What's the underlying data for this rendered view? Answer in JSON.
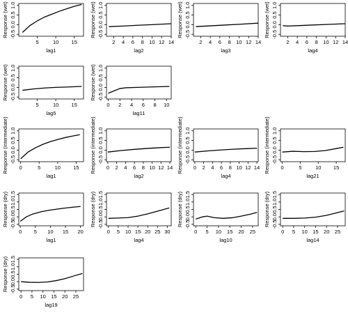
{
  "chart_data": [
    {
      "type": "line",
      "xlabel": "lag1",
      "ylabel": "Response (wet)",
      "x": [
        1,
        3,
        5,
        7,
        9,
        11,
        13,
        15,
        17
      ],
      "values": [
        -0.4,
        -0.05,
        0.2,
        0.4,
        0.55,
        0.7,
        0.83,
        0.95,
        1.05
      ],
      "xlim": [
        0,
        17.5
      ],
      "ylim": [
        -0.6,
        1.1
      ],
      "xticks": [
        5,
        10,
        15
      ],
      "yticks": [
        -0.5,
        {
          "value": 0,
          "label": "0.0"
        },
        0.5,
        {
          "value": 1,
          "label": "1.0"
        }
      ],
      "color": "#000000"
    },
    {
      "type": "line",
      "xlabel": "lag2",
      "ylabel": "Response (wet)",
      "x": [
        1,
        4,
        7,
        10,
        14
      ],
      "values": [
        -0.1,
        -0.07,
        -0.03,
        0,
        0.05
      ],
      "xlim": [
        0.5,
        14
      ],
      "ylim": [
        -0.6,
        1.1
      ],
      "xticks": [
        2,
        4,
        6,
        8,
        10,
        12,
        14
      ],
      "yticks": [
        -0.5,
        {
          "value": 0,
          "label": "0.0"
        },
        0.5,
        {
          "value": 1,
          "label": "1.0"
        }
      ],
      "color": "#000000"
    },
    {
      "type": "line",
      "xlabel": "lag3",
      "ylabel": "Response (wet)",
      "x": [
        1,
        4,
        7,
        10,
        14
      ],
      "values": [
        -0.1,
        -0.06,
        -0.02,
        0.02,
        0.08
      ],
      "xlim": [
        0.5,
        14
      ],
      "ylim": [
        -0.6,
        1.1
      ],
      "xticks": [
        2,
        4,
        6,
        8,
        10,
        12,
        14
      ],
      "yticks": [
        -0.5,
        {
          "value": 0,
          "label": "0.0"
        },
        0.5,
        {
          "value": 1,
          "label": "1.0"
        }
      ],
      "color": "#000000"
    },
    {
      "type": "line",
      "xlabel": "lag4",
      "ylabel": "Response (wet)",
      "x": [
        1,
        2,
        4,
        7,
        10,
        14
      ],
      "values": [
        -0.05,
        -0.07,
        -0.05,
        -0.02,
        0.01,
        0.05
      ],
      "xlim": [
        0.5,
        14
      ],
      "ylim": [
        -0.6,
        1.1
      ],
      "xticks": [
        2,
        4,
        6,
        8,
        10,
        12,
        14
      ],
      "yticks": [
        -0.5,
        {
          "value": 0,
          "label": "0.0"
        },
        0.5,
        {
          "value": 1,
          "label": "1.0"
        }
      ],
      "color": "#000000"
    },
    {
      "type": "line",
      "xlabel": "lag5",
      "ylabel": "Response (wet)",
      "x": [
        1,
        4,
        7,
        10,
        13,
        17
      ],
      "values": [
        -0.15,
        -0.08,
        -0.03,
        0,
        0.02,
        0.05
      ],
      "xlim": [
        0,
        17.5
      ],
      "ylim": [
        -0.6,
        1.1
      ],
      "xticks": [
        5,
        10,
        15
      ],
      "yticks": [
        -0.5,
        {
          "value": 0,
          "label": "0.0"
        },
        0.5,
        {
          "value": 1,
          "label": "1.0"
        }
      ],
      "color": "#000000"
    },
    {
      "type": "line",
      "xlabel": "lag11",
      "ylabel": "Response (wet)",
      "x": [
        0,
        1,
        2,
        3,
        5,
        7,
        10.5
      ],
      "values": [
        -0.3,
        -0.18,
        -0.06,
        -0.02,
        0,
        0.02,
        0.05
      ],
      "xlim": [
        -0.3,
        10.8
      ],
      "ylim": [
        -0.6,
        1.1
      ],
      "xticks": [
        0,
        2,
        4,
        6,
        8,
        10
      ],
      "yticks": [
        -0.5,
        {
          "value": 0,
          "label": "0.0"
        },
        0.5,
        {
          "value": 1,
          "label": "1.0"
        }
      ],
      "color": "#000000"
    },
    {
      "type": "line",
      "xlabel": "lag1",
      "ylabel": "Response (intermediate)",
      "x": [
        0,
        2,
        4,
        6,
        8,
        10,
        12,
        14,
        16
      ],
      "values": [
        -0.45,
        -0.1,
        0.12,
        0.3,
        0.44,
        0.55,
        0.65,
        0.73,
        0.8
      ],
      "xlim": [
        -0.5,
        17
      ],
      "ylim": [
        -0.6,
        1.1
      ],
      "xticks": [
        0,
        5,
        10,
        15
      ],
      "yticks": [
        -0.5,
        {
          "value": 0,
          "label": "0.0"
        },
        0.5,
        {
          "value": 1,
          "label": "1.0"
        }
      ],
      "color": "#000000"
    },
    {
      "type": "line",
      "xlabel": "lag2",
      "ylabel": "Response (intermediate)",
      "x": [
        0,
        3,
        6,
        9,
        12,
        14
      ],
      "values": [
        -0.1,
        -0.02,
        0.04,
        0.09,
        0.13,
        0.15
      ],
      "xlim": [
        -0.3,
        14.3
      ],
      "ylim": [
        -0.6,
        1.1
      ],
      "xticks": [
        0,
        2,
        4,
        6,
        8,
        10,
        12,
        14
      ],
      "yticks": [
        -0.5,
        {
          "value": 0,
          "label": "0.0"
        },
        0.5,
        {
          "value": 1,
          "label": "1.0"
        }
      ],
      "color": "#000000"
    },
    {
      "type": "line",
      "xlabel": "lag4",
      "ylabel": "Response (intermediate)",
      "x": [
        0,
        3,
        6,
        9,
        12,
        14
      ],
      "values": [
        -0.1,
        -0.04,
        0.01,
        0.05,
        0.08,
        0.1
      ],
      "xlim": [
        -0.3,
        14.3
      ],
      "ylim": [
        -0.6,
        1.1
      ],
      "xticks": [
        0,
        2,
        4,
        6,
        8,
        10,
        12,
        14
      ],
      "yticks": [
        -0.5,
        {
          "value": 0,
          "label": "0.0"
        },
        0.5,
        {
          "value": 1,
          "label": "1.0"
        }
      ],
      "color": "#000000"
    },
    {
      "type": "line",
      "xlabel": "lag21",
      "ylabel": "Response (intermediate)",
      "x": [
        0,
        3,
        6,
        9,
        12,
        15,
        17
      ],
      "values": [
        -0.1,
        -0.06,
        -0.08,
        -0.07,
        -0.02,
        0.08,
        0.15
      ],
      "xlim": [
        -0.5,
        17.5
      ],
      "ylim": [
        -0.6,
        1.1
      ],
      "xticks": [
        0,
        5,
        10,
        15
      ],
      "yticks": [
        -0.5,
        {
          "value": 0,
          "label": "0.0"
        },
        0.5,
        {
          "value": 1,
          "label": "1.0"
        }
      ],
      "color": "#000000"
    },
    {
      "type": "line",
      "xlabel": "lag1",
      "ylabel": "Response (dry)",
      "x": [
        0,
        2,
        4,
        7,
        10,
        14,
        17,
        20
      ],
      "values": [
        -0.3,
        0,
        0.18,
        0.35,
        0.46,
        0.57,
        0.64,
        0.7
      ],
      "xlim": [
        -0.5,
        21
      ],
      "ylim": [
        -0.6,
        1.6
      ],
      "xticks": [
        0,
        5,
        10,
        15,
        20
      ],
      "yticks": [
        -0.5,
        {
          "value": 0,
          "label": "0.0"
        },
        0.5,
        {
          "value": 1,
          "label": "1.0"
        },
        1.5
      ],
      "color": "#000000"
    },
    {
      "type": "line",
      "xlabel": "lag4",
      "ylabel": "Response (dry)",
      "x": [
        0,
        5,
        10,
        15,
        20,
        25,
        31
      ],
      "values": [
        -0.1,
        -0.08,
        -0.05,
        0.05,
        0.2,
        0.38,
        0.6
      ],
      "xlim": [
        -1,
        32
      ],
      "ylim": [
        -0.6,
        1.6
      ],
      "xticks": [
        0,
        5,
        10,
        15,
        20,
        25,
        30
      ],
      "yticks": [
        -0.5,
        {
          "value": 0,
          "label": "0.0"
        },
        0.5,
        {
          "value": 1,
          "label": "1.0"
        },
        1.5
      ],
      "color": "#000000"
    },
    {
      "type": "line",
      "xlabel": "lag10",
      "ylabel": "Response (dry)",
      "x": [
        0,
        3,
        5,
        8,
        12,
        16,
        20,
        24,
        27
      ],
      "values": [
        -0.15,
        0,
        0.05,
        -0.05,
        -0.1,
        -0.06,
        0.05,
        0.18,
        0.3
      ],
      "xlim": [
        -1,
        27.5
      ],
      "ylim": [
        -0.6,
        1.6
      ],
      "xticks": [
        0,
        5,
        10,
        15,
        20,
        25
      ],
      "yticks": [
        -0.5,
        {
          "value": 0,
          "label": "0.0"
        },
        0.5,
        {
          "value": 1,
          "label": "1.0"
        },
        1.5
      ],
      "color": "#000000"
    },
    {
      "type": "line",
      "xlabel": "lag14",
      "ylabel": "Response (dry)",
      "x": [
        0,
        5,
        10,
        15,
        20,
        24,
        28
      ],
      "values": [
        -0.1,
        -0.1,
        -0.08,
        -0.02,
        0.1,
        0.25,
        0.4
      ],
      "xlim": [
        -1,
        28.5
      ],
      "ylim": [
        -0.6,
        1.6
      ],
      "xticks": [
        0,
        5,
        10,
        15,
        20,
        25
      ],
      "yticks": [
        -0.5,
        {
          "value": 0,
          "label": "0.0"
        },
        0.5,
        {
          "value": 1,
          "label": "1.0"
        },
        1.5
      ],
      "color": "#000000"
    },
    {
      "type": "line",
      "xlabel": "lag19",
      "ylabel": "Response (dry)",
      "x": [
        0,
        4,
        8,
        12,
        16,
        20,
        24,
        28
      ],
      "values": [
        0,
        -0.04,
        -0.05,
        -0.02,
        0.07,
        0.2,
        0.38,
        0.55
      ],
      "xlim": [
        -1,
        28.5
      ],
      "ylim": [
        -0.6,
        1.6
      ],
      "xticks": [
        0,
        5,
        10,
        15,
        20,
        25
      ],
      "yticks": [
        -0.5,
        {
          "value": 0,
          "label": "0.0"
        },
        0.5,
        {
          "value": 1,
          "label": "1.0"
        },
        1.5
      ],
      "color": "#000000"
    }
  ]
}
